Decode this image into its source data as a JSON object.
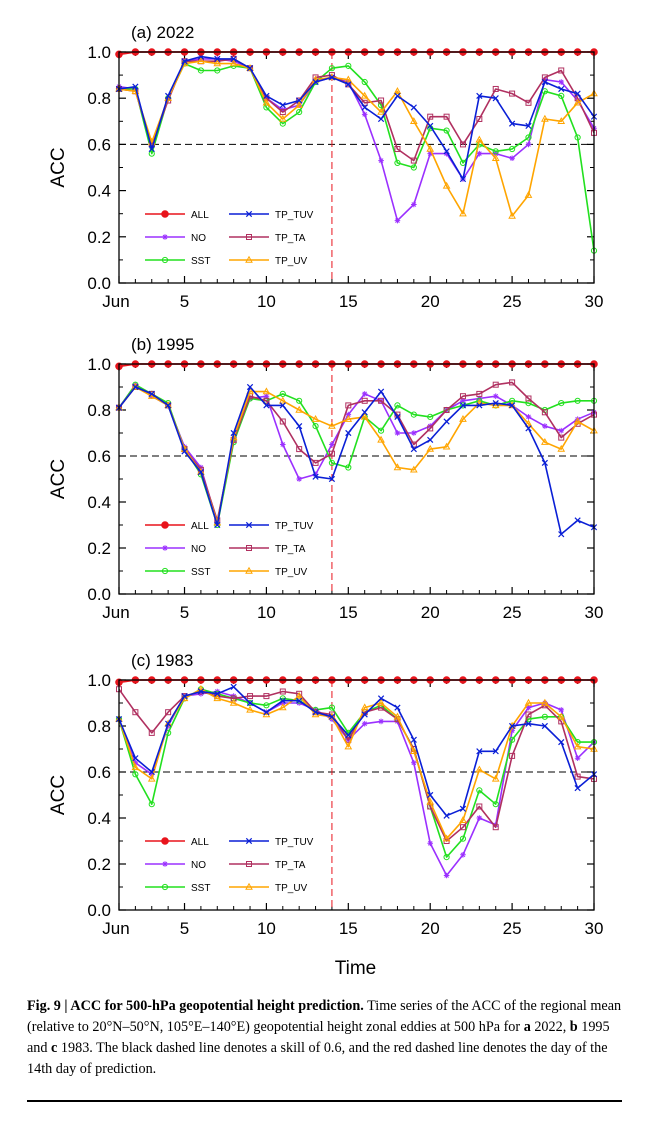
{
  "caption": {
    "label": "Fig. 9 | ACC for 500-hPa geopotential height prediction.",
    "text_1": " Time series of the ACC of the regional mean (relative to 20°N–50°N, 105°E–140°E) geopotential height zonal eddies at 500 hPa for ",
    "a": "a",
    "text_2": " 2022, ",
    "b": "b",
    "text_3": " 1995 and ",
    "c": "c",
    "text_4": " 1983. The black dashed line denotes a skill of 0.6, and the red dashed line denotes the day of the 14th day of prediction."
  },
  "colors": {
    "ALL": "#e8141c",
    "NO": "#9b30ff",
    "SST": "#22e01f",
    "TP_TUV": "#0a1fd6",
    "TP_TA": "#b03060",
    "TP_UV": "#ffa500"
  },
  "chart_data": [
    {
      "type": "line",
      "title": "(a) 2022",
      "xlabel": "",
      "ylabel": "ACC",
      "x": [
        1,
        2,
        3,
        4,
        5,
        6,
        7,
        8,
        9,
        10,
        11,
        12,
        13,
        14,
        15,
        16,
        17,
        18,
        19,
        20,
        21,
        22,
        23,
        24,
        25,
        26,
        27,
        28,
        29,
        30
      ],
      "x_tick_labels": [
        "Jun",
        "5",
        "10",
        "15",
        "20",
        "25",
        "30"
      ],
      "y_tick_labels": [
        "0.0",
        "0.2",
        "0.4",
        "0.6",
        "0.8",
        "1.0"
      ],
      "xlim": [
        1,
        30
      ],
      "ylim": [
        0,
        1
      ],
      "reference_lines": {
        "skill": 0.6,
        "day": 14
      },
      "legend": "lower-left, two columns",
      "series": [
        {
          "name": "ALL",
          "marker": "dot",
          "values": [
            0.99,
            1.0,
            1.0,
            1.0,
            1.0,
            1.0,
            1.0,
            1.0,
            1.0,
            1.0,
            1.0,
            1.0,
            1.0,
            1.0,
            1.0,
            1.0,
            1.0,
            1.0,
            1.0,
            1.0,
            1.0,
            1.0,
            1.0,
            1.0,
            1.0,
            1.0,
            1.0,
            1.0,
            1.0,
            1.0
          ]
        },
        {
          "name": "NO",
          "marker": "star",
          "values": [
            0.85,
            0.84,
            0.59,
            0.8,
            0.96,
            0.97,
            0.97,
            0.96,
            0.93,
            0.8,
            0.75,
            0.77,
            0.87,
            0.89,
            0.87,
            0.73,
            0.53,
            0.27,
            0.34,
            0.56,
            0.56,
            0.45,
            0.56,
            0.56,
            0.54,
            0.6,
            0.88,
            0.87,
            0.79,
            0.67
          ]
        },
        {
          "name": "SST",
          "marker": "circle",
          "values": [
            0.84,
            0.84,
            0.56,
            0.8,
            0.95,
            0.92,
            0.92,
            0.94,
            0.93,
            0.76,
            0.69,
            0.74,
            0.87,
            0.93,
            0.94,
            0.87,
            0.77,
            0.52,
            0.5,
            0.67,
            0.66,
            0.52,
            0.6,
            0.57,
            0.58,
            0.63,
            0.83,
            0.81,
            0.63,
            0.14
          ]
        },
        {
          "name": "TP_TUV",
          "marker": "x",
          "values": [
            0.84,
            0.85,
            0.58,
            0.81,
            0.96,
            0.98,
            0.97,
            0.97,
            0.93,
            0.81,
            0.77,
            0.79,
            0.87,
            0.89,
            0.86,
            0.76,
            0.71,
            0.81,
            0.76,
            0.68,
            0.57,
            0.45,
            0.81,
            0.8,
            0.69,
            0.68,
            0.87,
            0.84,
            0.82,
            0.72
          ]
        },
        {
          "name": "TP_TA",
          "marker": "square",
          "values": [
            0.84,
            0.83,
            0.6,
            0.79,
            0.96,
            0.96,
            0.96,
            0.97,
            0.93,
            0.8,
            0.74,
            0.79,
            0.89,
            0.9,
            0.86,
            0.78,
            0.79,
            0.58,
            0.53,
            0.72,
            0.72,
            0.6,
            0.71,
            0.84,
            0.82,
            0.78,
            0.89,
            0.92,
            0.8,
            0.65
          ]
        },
        {
          "name": "TP_UV",
          "marker": "triangle",
          "values": [
            0.84,
            0.83,
            0.61,
            0.8,
            0.95,
            0.96,
            0.95,
            0.95,
            0.93,
            0.78,
            0.71,
            0.77,
            0.88,
            0.89,
            0.88,
            0.81,
            0.74,
            0.83,
            0.7,
            0.58,
            0.42,
            0.3,
            0.62,
            0.54,
            0.29,
            0.38,
            0.71,
            0.7,
            0.78,
            0.82
          ]
        }
      ]
    },
    {
      "type": "line",
      "title": "(b) 1995",
      "xlabel": "",
      "ylabel": "ACC",
      "x": [
        1,
        2,
        3,
        4,
        5,
        6,
        7,
        8,
        9,
        10,
        11,
        12,
        13,
        14,
        15,
        16,
        17,
        18,
        19,
        20,
        21,
        22,
        23,
        24,
        25,
        26,
        27,
        28,
        29,
        30
      ],
      "x_tick_labels": [
        "Jun",
        "5",
        "10",
        "15",
        "20",
        "25",
        "30"
      ],
      "y_tick_labels": [
        "0.0",
        "0.2",
        "0.4",
        "0.6",
        "0.8",
        "1.0"
      ],
      "xlim": [
        1,
        30
      ],
      "ylim": [
        0,
        1
      ],
      "reference_lines": {
        "skill": 0.6,
        "day": 14
      },
      "legend": "lower-left, two columns",
      "series": [
        {
          "name": "ALL",
          "marker": "dot",
          "values": [
            0.99,
            1.0,
            1.0,
            1.0,
            1.0,
            1.0,
            1.0,
            1.0,
            1.0,
            1.0,
            1.0,
            1.0,
            1.0,
            1.0,
            1.0,
            1.0,
            1.0,
            1.0,
            1.0,
            1.0,
            1.0,
            1.0,
            1.0,
            1.0,
            1.0,
            1.0,
            1.0,
            1.0,
            1.0,
            1.0
          ]
        },
        {
          "name": "NO",
          "marker": "star",
          "values": [
            0.81,
            0.91,
            0.86,
            0.82,
            0.64,
            0.55,
            0.31,
            0.67,
            0.85,
            0.86,
            0.65,
            0.5,
            0.52,
            0.65,
            0.78,
            0.87,
            0.84,
            0.7,
            0.7,
            0.73,
            0.8,
            0.84,
            0.85,
            0.86,
            0.82,
            0.77,
            0.73,
            0.71,
            0.76,
            0.79
          ]
        },
        {
          "name": "SST",
          "marker": "circle",
          "values": [
            0.81,
            0.91,
            0.87,
            0.83,
            0.63,
            0.52,
            0.3,
            0.66,
            0.85,
            0.84,
            0.87,
            0.84,
            0.73,
            0.57,
            0.55,
            0.77,
            0.71,
            0.82,
            0.78,
            0.77,
            0.8,
            0.82,
            0.84,
            0.82,
            0.84,
            0.83,
            0.8,
            0.83,
            0.84,
            0.84
          ]
        },
        {
          "name": "TP_TUV",
          "marker": "x",
          "values": [
            0.81,
            0.9,
            0.87,
            0.82,
            0.62,
            0.53,
            0.3,
            0.7,
            0.9,
            0.82,
            0.82,
            0.73,
            0.51,
            0.5,
            0.7,
            0.79,
            0.88,
            0.77,
            0.63,
            0.67,
            0.75,
            0.82,
            0.82,
            0.83,
            0.82,
            0.72,
            0.57,
            0.26,
            0.32,
            0.29
          ]
        },
        {
          "name": "TP_TA",
          "marker": "square",
          "values": [
            0.81,
            0.9,
            0.87,
            0.82,
            0.63,
            0.54,
            0.32,
            0.67,
            0.86,
            0.84,
            0.75,
            0.63,
            0.57,
            0.61,
            0.82,
            0.84,
            0.84,
            0.78,
            0.65,
            0.72,
            0.8,
            0.86,
            0.87,
            0.91,
            0.92,
            0.85,
            0.79,
            0.68,
            0.74,
            0.78
          ]
        },
        {
          "name": "TP_UV",
          "marker": "triangle",
          "values": [
            0.81,
            0.9,
            0.86,
            0.82,
            0.63,
            0.53,
            0.31,
            0.68,
            0.88,
            0.88,
            0.84,
            0.8,
            0.76,
            0.73,
            0.76,
            0.77,
            0.67,
            0.55,
            0.54,
            0.63,
            0.64,
            0.76,
            0.83,
            0.82,
            0.82,
            0.74,
            0.66,
            0.63,
            0.75,
            0.71
          ]
        }
      ]
    },
    {
      "type": "line",
      "title": "(c) 1983",
      "xlabel": "Time",
      "ylabel": "ACC",
      "x": [
        1,
        2,
        3,
        4,
        5,
        6,
        7,
        8,
        9,
        10,
        11,
        12,
        13,
        14,
        15,
        16,
        17,
        18,
        19,
        20,
        21,
        22,
        23,
        24,
        25,
        26,
        27,
        28,
        29,
        30
      ],
      "x_tick_labels": [
        "Jun",
        "5",
        "10",
        "15",
        "20",
        "25",
        "30"
      ],
      "y_tick_labels": [
        "0.0",
        "0.2",
        "0.4",
        "0.6",
        "0.8",
        "1.0"
      ],
      "xlim": [
        1,
        30
      ],
      "ylim": [
        0,
        1
      ],
      "reference_lines": {
        "skill": 0.6,
        "day": 14
      },
      "legend": "lower-left, two columns",
      "series": [
        {
          "name": "ALL",
          "marker": "dot",
          "values": [
            0.99,
            1.0,
            1.0,
            1.0,
            1.0,
            1.0,
            1.0,
            1.0,
            1.0,
            1.0,
            1.0,
            1.0,
            1.0,
            1.0,
            1.0,
            1.0,
            1.0,
            1.0,
            1.0,
            1.0,
            1.0,
            1.0,
            1.0,
            1.0,
            1.0,
            1.0,
            1.0,
            1.0,
            1.0,
            1.0
          ]
        },
        {
          "name": "NO",
          "marker": "star",
          "values": [
            0.83,
            0.64,
            0.59,
            0.8,
            0.93,
            0.94,
            0.95,
            0.93,
            0.9,
            0.86,
            0.9,
            0.9,
            0.87,
            0.83,
            0.74,
            0.81,
            0.82,
            0.82,
            0.64,
            0.29,
            0.15,
            0.24,
            0.4,
            0.37,
            0.78,
            0.88,
            0.9,
            0.87,
            0.66,
            0.73
          ]
        },
        {
          "name": "SST",
          "marker": "circle",
          "values": [
            0.83,
            0.59,
            0.46,
            0.77,
            0.92,
            0.96,
            0.94,
            0.92,
            0.9,
            0.89,
            0.92,
            0.91,
            0.87,
            0.88,
            0.77,
            0.86,
            0.89,
            0.83,
            0.7,
            0.45,
            0.23,
            0.31,
            0.52,
            0.46,
            0.74,
            0.83,
            0.84,
            0.84,
            0.73,
            0.73
          ]
        },
        {
          "name": "TP_TUV",
          "marker": "x",
          "values": [
            0.83,
            0.66,
            0.6,
            0.81,
            0.93,
            0.95,
            0.94,
            0.97,
            0.9,
            0.86,
            0.91,
            0.91,
            0.86,
            0.84,
            0.76,
            0.85,
            0.92,
            0.88,
            0.74,
            0.5,
            0.41,
            0.44,
            0.69,
            0.69,
            0.8,
            0.81,
            0.8,
            0.73,
            0.53,
            0.59
          ]
        },
        {
          "name": "TP_TA",
          "marker": "square",
          "values": [
            0.96,
            0.86,
            0.77,
            0.86,
            0.93,
            0.95,
            0.93,
            0.92,
            0.93,
            0.93,
            0.95,
            0.94,
            0.86,
            0.85,
            0.74,
            0.86,
            0.88,
            0.83,
            0.7,
            0.45,
            0.3,
            0.36,
            0.45,
            0.36,
            0.67,
            0.85,
            0.89,
            0.82,
            0.58,
            0.57
          ]
        },
        {
          "name": "TP_UV",
          "marker": "triangle",
          "values": [
            0.83,
            0.62,
            0.57,
            0.81,
            0.92,
            0.96,
            0.92,
            0.9,
            0.87,
            0.85,
            0.88,
            0.93,
            0.85,
            0.84,
            0.71,
            0.88,
            0.9,
            0.84,
            0.69,
            0.47,
            0.31,
            0.39,
            0.61,
            0.57,
            0.8,
            0.9,
            0.9,
            0.84,
            0.71,
            0.7
          ]
        }
      ]
    }
  ]
}
